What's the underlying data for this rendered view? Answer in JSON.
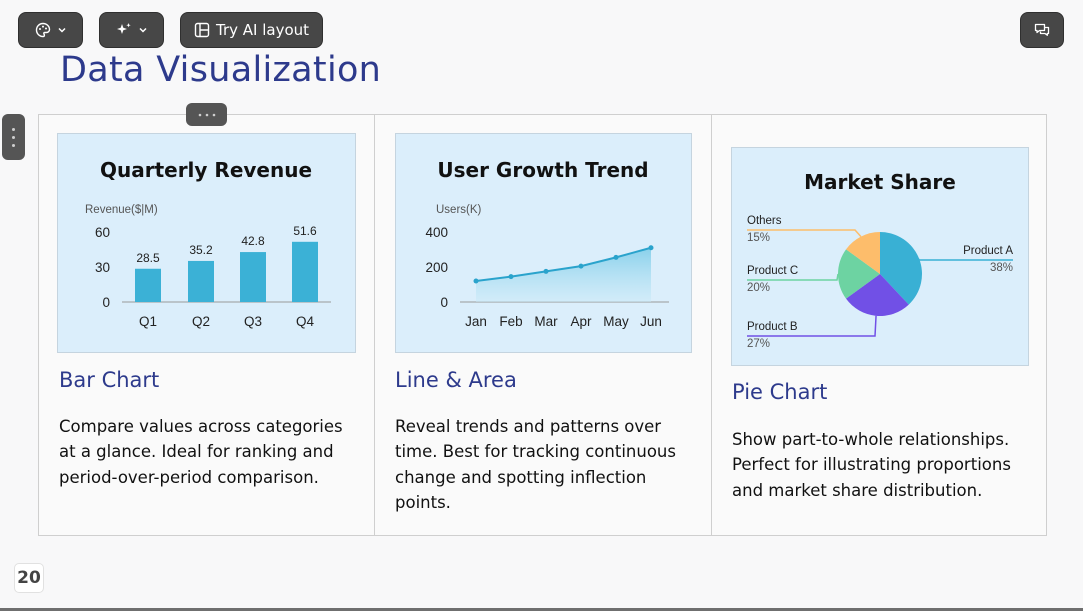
{
  "toolbar": {
    "palette_icon": "palette-icon",
    "sparkle_icon": "sparkle-icon",
    "try_ai_label": "Try AI layout",
    "chat_icon": "chat-icon"
  },
  "page": {
    "title": "Data Visualization",
    "page_number": "20"
  },
  "cards": [
    {
      "title": "Bar Chart",
      "description": "Compare values across categories at a glance. Ideal for ranking and period-over-period comparison."
    },
    {
      "title": "Line & Area",
      "description": "Reveal trends and patterns over time. Best for tracking continuous change and spotting inflection points."
    },
    {
      "title": "Pie Chart",
      "description": "Show part-to-whole relationships. Perfect for illustrating proportions and market share distribution."
    }
  ],
  "chart_data": [
    {
      "type": "bar",
      "title": "Quarterly Revenue",
      "ylabel": "Revenue($|M)",
      "categories": [
        "Q1",
        "Q2",
        "Q3",
        "Q4"
      ],
      "values": [
        28.5,
        35.2,
        42.8,
        51.6
      ],
      "ylim": [
        0,
        60
      ],
      "yticks": [
        0,
        30,
        60
      ],
      "color": "#3bb1d6",
      "grid": false
    },
    {
      "type": "line",
      "title": "User Growth Trend",
      "ylabel": "Users(K)",
      "categories": [
        "Jan",
        "Feb",
        "Mar",
        "Apr",
        "May",
        "Jun"
      ],
      "values": [
        120,
        145,
        175,
        205,
        255,
        310
      ],
      "ylim": [
        0,
        400
      ],
      "yticks": [
        0,
        200,
        400
      ],
      "color": "#2aa3cc",
      "area": true,
      "grid": false
    },
    {
      "type": "pie",
      "title": "Market Share",
      "slices": [
        {
          "name": "Product A",
          "label": "38%",
          "value": 38,
          "color": "#39b0d4"
        },
        {
          "name": "Product B",
          "label": "27%",
          "value": 27,
          "color": "#7150e6"
        },
        {
          "name": "Product C",
          "label": "20%",
          "value": 20,
          "color": "#6dd3a2"
        },
        {
          "name": "Others",
          "label": "15%",
          "value": 15,
          "color": "#fdbd6b"
        }
      ]
    }
  ]
}
